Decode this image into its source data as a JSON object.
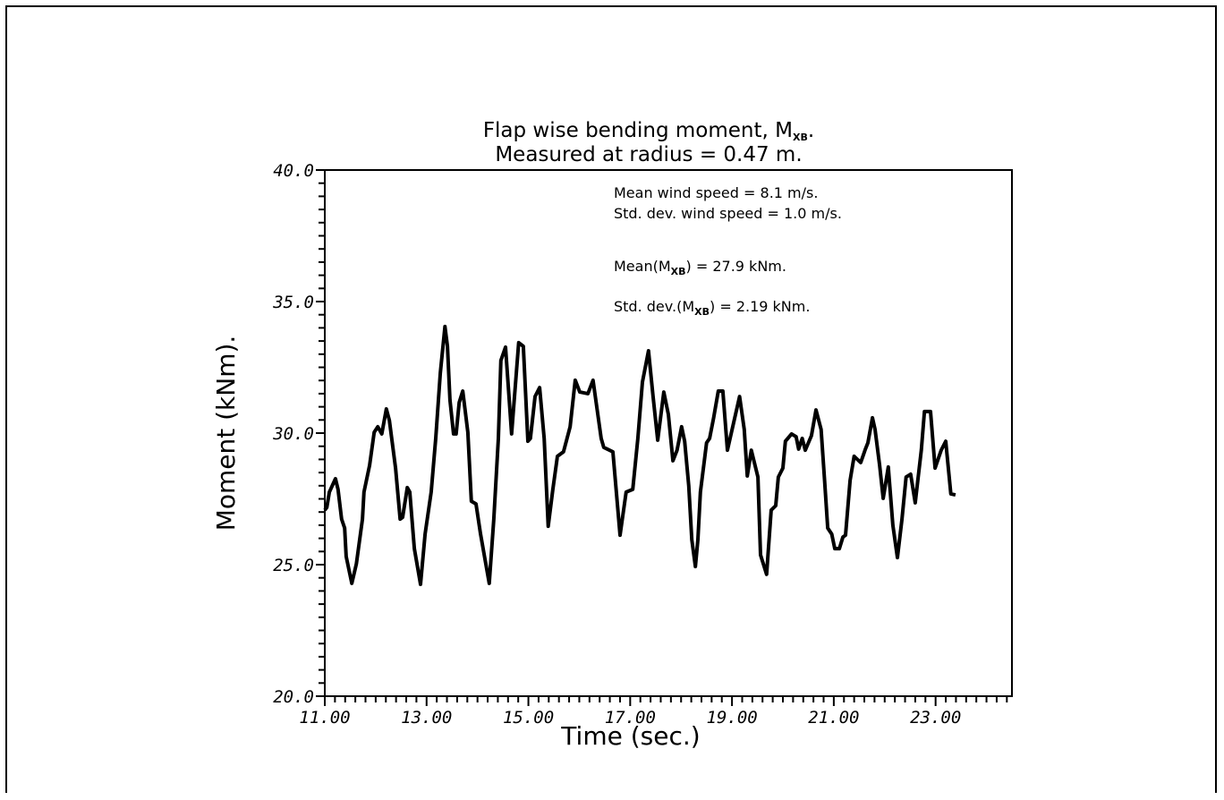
{
  "chart_data": {
    "type": "line",
    "title": {
      "line1_prefix": "Flap wise bending moment, M",
      "line1_sub": "XB",
      "line1_suffix": ".",
      "line2": "Measured at radius = 0.47 m."
    },
    "xlabel": "Time (sec.)",
    "ylabel": "Moment (kNm).",
    "xlim": [
      11,
      24.5
    ],
    "ylim": [
      20,
      40
    ],
    "xticks": [
      "11.00",
      "13.00",
      "15.00",
      "17.00",
      "19.00",
      "21.00",
      "23.00"
    ],
    "xtick_values": [
      11,
      13,
      15,
      17,
      19,
      21,
      23
    ],
    "yticks": [
      "20.0",
      "25.0",
      "30.0",
      "35.0",
      "40.0"
    ],
    "ytick_values": [
      20,
      25,
      30,
      35,
      40
    ],
    "grid": false,
    "line_color": "#000000",
    "annotations": [
      {
        "prefix": "Mean wind speed = 8.1 m/s.",
        "sub": "",
        "suffix": ""
      },
      {
        "prefix": "Std. dev. wind speed = 1.0 m/s.",
        "sub": "",
        "suffix": ""
      },
      {
        "prefix": "Mean(M",
        "sub": "XB",
        "suffix": ") = 27.9 kNm."
      },
      {
        "prefix": "Std. dev.(M",
        "sub": "XB",
        "suffix": ") = 2.19 kNm."
      }
    ],
    "series": [
      {
        "x": [
          11.0,
          11.04,
          11.09,
          11.21,
          11.26,
          11.33,
          11.39,
          11.42,
          11.53,
          11.62,
          11.74,
          11.77,
          11.88,
          11.97,
          12.04,
          12.12,
          12.21,
          12.27,
          12.39,
          12.48,
          12.53,
          12.62,
          12.67,
          12.76,
          12.88,
          12.97,
          13.09,
          13.18,
          13.27,
          13.36,
          13.41,
          13.46,
          13.53,
          13.58,
          13.64,
          13.71,
          13.81,
          13.88,
          13.97,
          14.06,
          14.23,
          14.32,
          14.41,
          14.46,
          14.55,
          14.67,
          14.81,
          14.9,
          14.99,
          15.04,
          15.13,
          15.22,
          15.31,
          15.39,
          15.48,
          15.57,
          15.69,
          15.82,
          15.92,
          16.01,
          16.17,
          16.27,
          16.43,
          16.48,
          16.66,
          16.8,
          16.92,
          17.05,
          17.15,
          17.24,
          17.36,
          17.45,
          17.54,
          17.66,
          17.75,
          17.84,
          17.92,
          18.01,
          18.07,
          18.15,
          18.21,
          18.28,
          18.33,
          18.38,
          18.5,
          18.56,
          18.64,
          18.73,
          18.82,
          18.91,
          19.03,
          19.15,
          19.24,
          19.3,
          19.38,
          19.51,
          19.56,
          19.68,
          19.77,
          19.86,
          19.91,
          20.0,
          20.05,
          20.17,
          20.26,
          20.31,
          20.38,
          20.44,
          20.56,
          20.65,
          20.75,
          20.82,
          20.88,
          20.96,
          21.02,
          21.11,
          21.18,
          21.23,
          21.32,
          21.4,
          21.53,
          21.62,
          21.67,
          21.76,
          21.81,
          21.9,
          21.97,
          22.07,
          22.16,
          22.25,
          22.34,
          22.42,
          22.51,
          22.6,
          22.72,
          22.78,
          22.9,
          22.99,
          23.11,
          23.2,
          23.3,
          23.39
        ],
        "y": [
          27.07,
          27.18,
          27.76,
          28.27,
          27.86,
          26.73,
          26.39,
          25.31,
          24.29,
          25.03,
          26.73,
          27.76,
          28.78,
          30.03,
          30.24,
          29.97,
          30.92,
          30.48,
          28.67,
          26.73,
          26.8,
          27.93,
          27.76,
          25.61,
          24.25,
          26.16,
          27.76,
          29.8,
          32.28,
          34.05,
          33.3,
          31.26,
          29.97,
          29.97,
          31.16,
          31.6,
          30.03,
          27.41,
          27.31,
          26.16,
          24.29,
          26.73,
          29.8,
          32.76,
          33.27,
          29.97,
          33.44,
          33.3,
          29.69,
          29.8,
          31.39,
          31.73,
          29.8,
          26.46,
          27.86,
          29.12,
          29.29,
          30.24,
          32.01,
          31.56,
          31.5,
          32.01,
          29.8,
          29.46,
          29.29,
          26.12,
          27.76,
          27.86,
          29.8,
          31.94,
          33.13,
          31.39,
          29.73,
          31.56,
          30.71,
          28.95,
          29.35,
          30.24,
          29.69,
          27.99,
          25.95,
          24.93,
          25.95,
          27.76,
          29.63,
          29.8,
          30.58,
          31.6,
          31.6,
          29.35,
          30.37,
          31.39,
          30.14,
          28.37,
          29.35,
          28.33,
          25.37,
          24.63,
          27.07,
          27.24,
          28.33,
          28.67,
          29.69,
          29.97,
          29.86,
          29.39,
          29.8,
          29.35,
          29.9,
          30.88,
          30.14,
          28.2,
          26.39,
          26.16,
          25.61,
          25.61,
          26.05,
          26.12,
          28.2,
          29.12,
          28.88,
          29.39,
          29.63,
          30.58,
          30.14,
          28.78,
          27.52,
          28.71,
          26.5,
          25.27,
          26.73,
          28.33,
          28.44,
          27.35,
          29.35,
          30.82,
          30.82,
          28.67,
          29.35,
          29.69,
          27.69,
          27.65
        ]
      }
    ]
  }
}
